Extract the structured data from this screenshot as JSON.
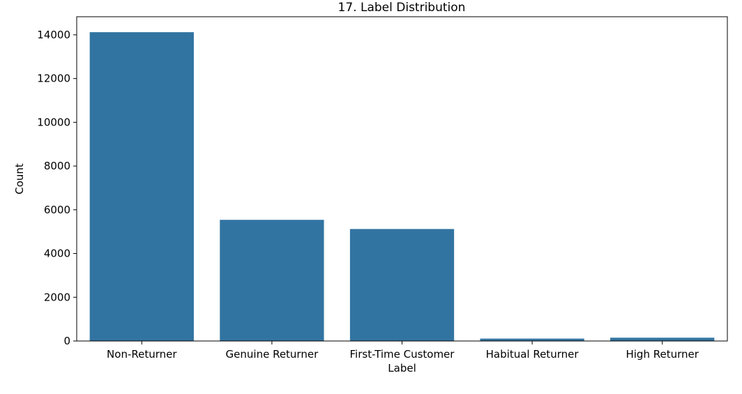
{
  "chart_data": {
    "type": "bar",
    "title": "17. Label Distribution",
    "xlabel": "Label",
    "ylabel": "Count",
    "categories": [
      "Non-Returner",
      "Genuine Returner",
      "First-Time Customer",
      "Habitual Returner",
      "High Returner"
    ],
    "values": [
      14120,
      5540,
      5120,
      110,
      150
    ],
    "ylim": [
      0,
      14826
    ],
    "yticks": [
      0,
      2000,
      4000,
      6000,
      8000,
      10000,
      12000,
      14000
    ],
    "grid": false,
    "legend": "none",
    "bar_color": "#3274a1"
  }
}
